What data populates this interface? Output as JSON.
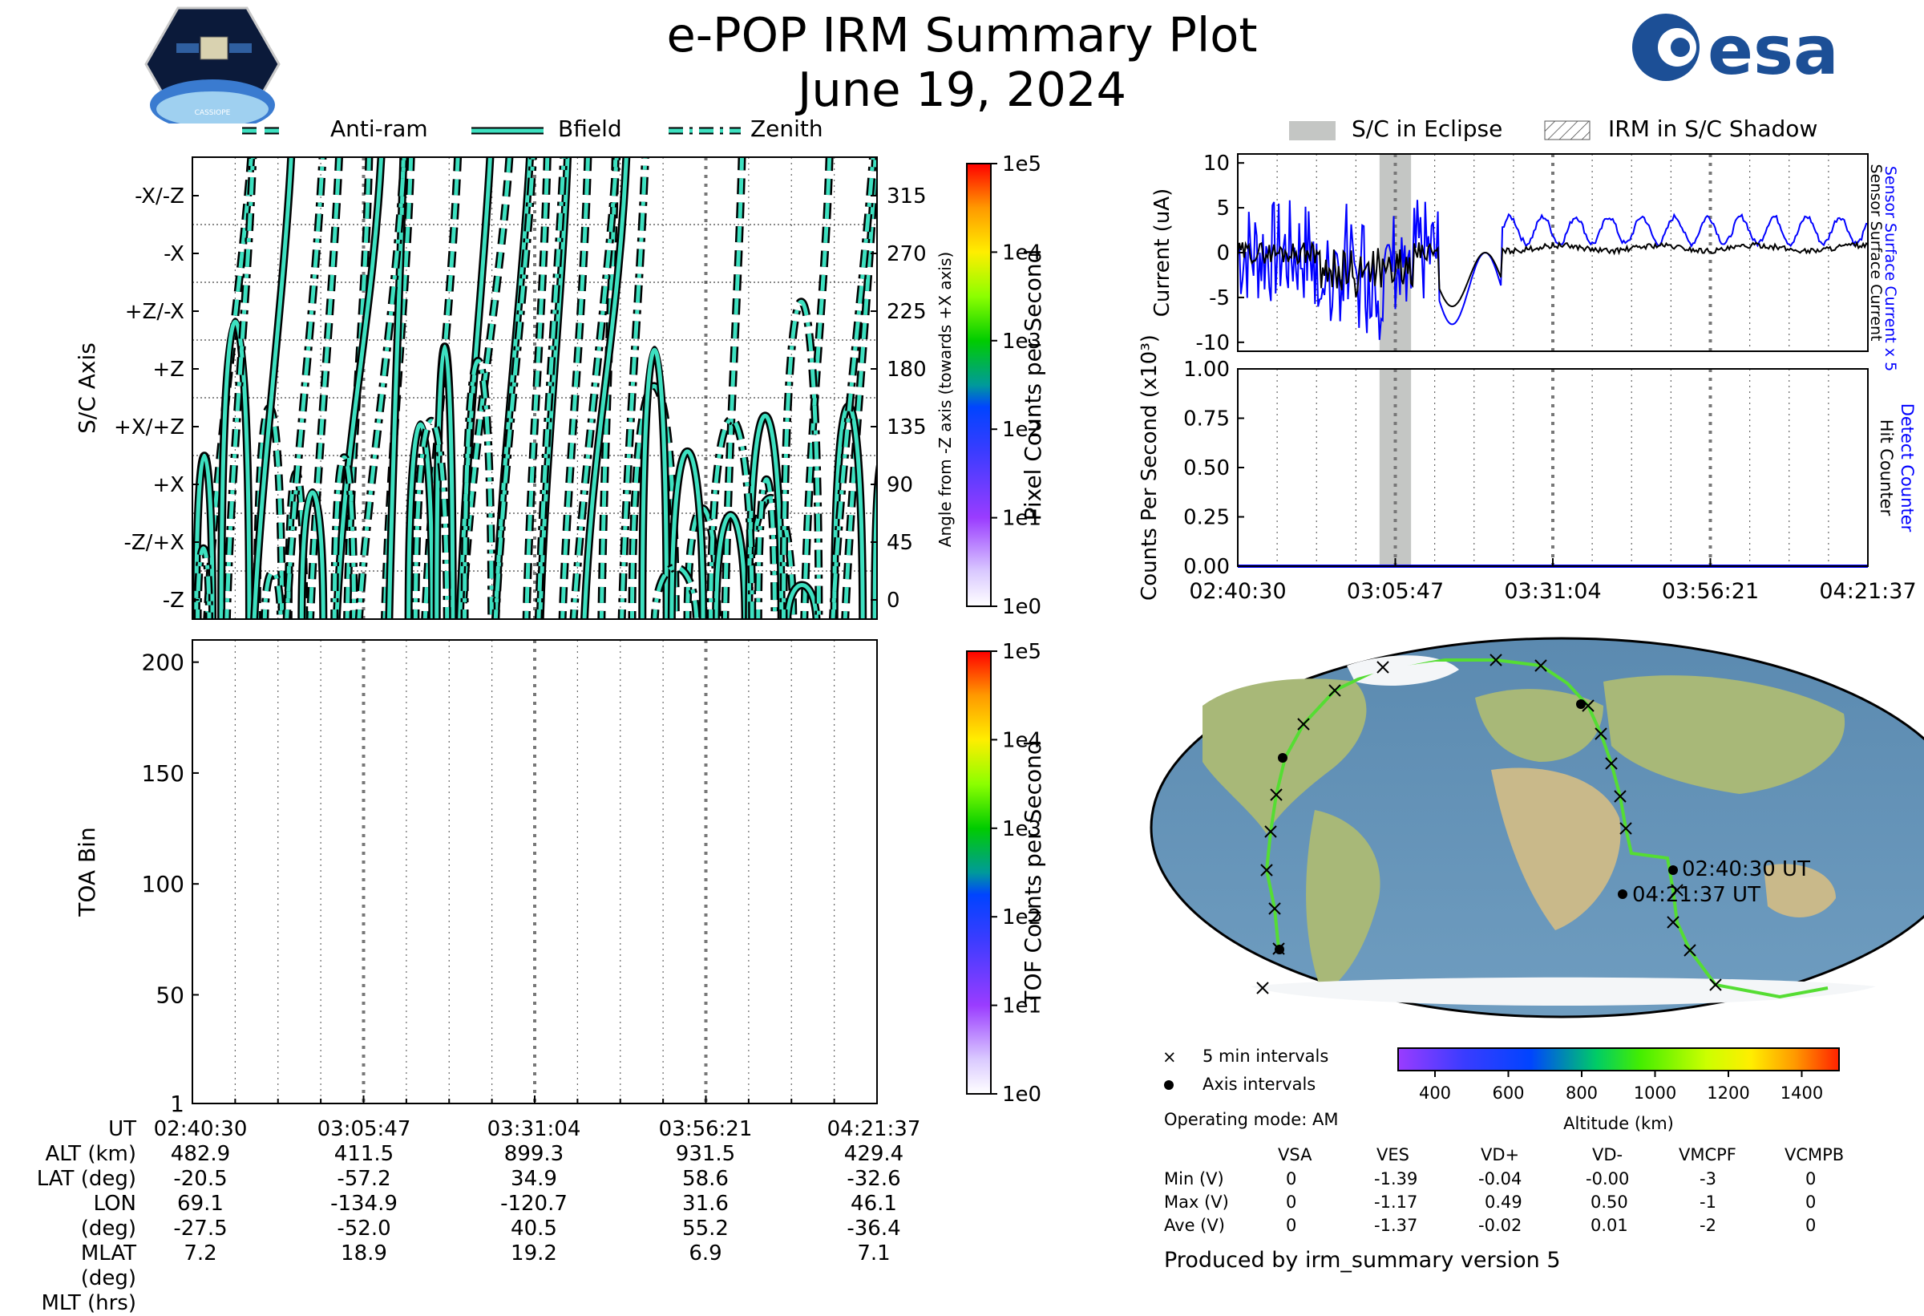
{
  "header": {
    "title": "e-POP IRM Summary Plot",
    "date": "June 19, 2024",
    "left_logo_text": "CASSIOPE",
    "right_logo_text": "esa"
  },
  "legend_directions": [
    "Anti-ram",
    "Bfield",
    "Zenith"
  ],
  "legend_eclipse": [
    "S/C in Eclipse",
    "IRM in S/C Shadow"
  ],
  "colors": {
    "trace_fill": "#3de0c0",
    "trace_edge": "#000000",
    "eclipse": "#c4c6c4",
    "sensor_current": "#0000ff",
    "surface_current": "#000000",
    "detect_counter": "#0000ff"
  },
  "chart_data": [
    {
      "type": "line",
      "name": "attitude",
      "ylabel": "S/C Axis",
      "y2label": "Angle from -Z axis (towards +X axis)",
      "ytick_labels": [
        "-Z",
        "-Z/+X",
        "+X",
        "+X/+Z",
        "+Z",
        "+Z/-X",
        "-X",
        "-X/-Z"
      ],
      "y2tick_labels": [
        "0",
        "45",
        "90",
        "135",
        "180",
        "225",
        "270",
        "315"
      ],
      "ylim": [
        -15,
        345
      ],
      "series": [
        {
          "name": "Anti-ram",
          "style": "dashed"
        },
        {
          "name": "Bfield",
          "style": "solid"
        },
        {
          "name": "Zenith",
          "style": "dashdot"
        }
      ],
      "colorbar": {
        "label": "Pixel Counts per Second",
        "ticks": [
          "1e0",
          "1e1",
          "1e2",
          "1e3",
          "1e4",
          "1e5"
        ]
      }
    },
    {
      "type": "heatmap",
      "name": "toa",
      "ylabel": "TOA Bin",
      "yticks": [
        1,
        50,
        100,
        150,
        200
      ],
      "ylim": [
        1,
        210
      ],
      "colorbar": {
        "label": "TOF Counts per Second",
        "ticks": [
          "1e0",
          "1e1",
          "1e2",
          "1e3",
          "1e4",
          "1e5"
        ]
      }
    },
    {
      "type": "line",
      "name": "current",
      "ylabel": "Current (uA)",
      "yticks": [
        10,
        5,
        0,
        -5,
        -10
      ],
      "ylim": [
        -11,
        11
      ],
      "right_labels": [
        "Sensor Surface Current x 5",
        "Sensor Surface Current"
      ],
      "eclipse": [
        0.225,
        0.275
      ]
    },
    {
      "type": "line",
      "name": "counts",
      "ylabel": "Counts Per Second (x10³)",
      "yticks": [
        "1.00",
        "0.75",
        "0.50",
        "0.25",
        "0.00"
      ],
      "ylim": [
        0,
        1
      ],
      "right_labels": [
        "Detect Counter",
        "Hit Counter"
      ],
      "series": [
        {
          "name": "Detect Counter",
          "values": [
            0,
            0
          ]
        }
      ]
    }
  ],
  "time_axis": [
    "02:40:30",
    "03:05:47",
    "03:31:04",
    "03:56:21",
    "04:21:37"
  ],
  "ephemeris": {
    "row_labels": [
      "UT",
      "ALT (km)",
      "LAT (deg)",
      "LON (deg)",
      "MLAT (deg)",
      "MLT (hrs)"
    ],
    "columns": [
      [
        "02:40:30",
        "482.9",
        "-20.5",
        "69.1",
        "-27.5",
        "7.2"
      ],
      [
        "03:05:47",
        "411.5",
        "-57.2",
        "-134.9",
        "-52.0",
        "18.9"
      ],
      [
        "03:31:04",
        "899.3",
        "34.9",
        "-120.7",
        "40.5",
        "19.2"
      ],
      [
        "03:56:21",
        "931.5",
        "58.6",
        "31.6",
        "55.2",
        "6.9"
      ],
      [
        "04:21:37",
        "429.4",
        "-32.6",
        "46.1",
        "-36.4",
        "7.1"
      ]
    ]
  },
  "map": {
    "start_label": "02:40:30 UT",
    "end_label": "04:21:37 UT",
    "legend": [
      "5 min intervals",
      "Axis intervals"
    ],
    "altitude_label": "Altitude (km)",
    "altitude_ticks": [
      "400",
      "600",
      "800",
      "1000",
      "1200",
      "1400"
    ]
  },
  "operating_mode": "Operating mode: AM",
  "voltages": {
    "headers": [
      "",
      "VSA",
      "VES",
      "VD+",
      "VD-",
      "VMCPF",
      "VCMPB"
    ],
    "rows": [
      [
        "Min (V)",
        "0",
        "-1.39",
        "-0.04",
        "-0.00",
        "-3",
        "0"
      ],
      [
        "Max (V)",
        "0",
        "-1.17",
        "0.49",
        "0.50",
        "-1",
        "0"
      ],
      [
        "Ave (V)",
        "0",
        "-1.37",
        "-0.02",
        "0.01",
        "-2",
        "0"
      ]
    ]
  },
  "footer": "Produced by irm_summary version 5"
}
